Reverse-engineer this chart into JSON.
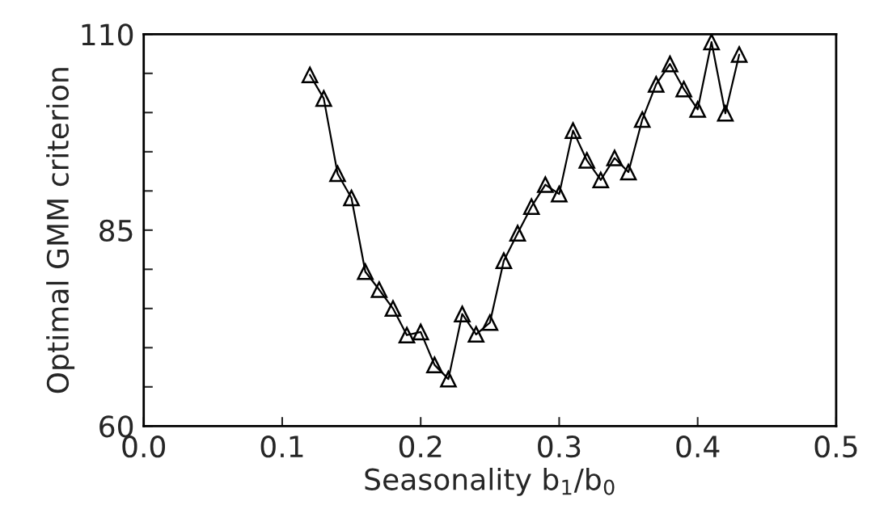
{
  "chart_data": {
    "type": "line",
    "xlabel": "Seasonality b$_{1}$/b$_{0}$",
    "ylabel": "Optimal GMM criterion",
    "x": [
      0.12,
      0.13,
      0.14,
      0.15,
      0.16,
      0.17,
      0.18,
      0.19,
      0.2,
      0.21,
      0.22,
      0.23,
      0.24,
      0.25,
      0.26,
      0.27,
      0.28,
      0.29,
      0.3,
      0.31,
      0.32,
      0.33,
      0.34,
      0.35,
      0.36,
      0.37,
      0.38,
      0.39,
      0.4,
      0.41,
      0.42,
      0.43
    ],
    "series": [
      {
        "color": "#000000",
        "values": [
          104.8,
          101.8,
          92.2,
          89.1,
          79.7,
          77.4,
          75.0,
          71.6,
          72.0,
          67.8,
          66.0,
          74.3,
          71.7,
          73.2,
          81.1,
          84.6,
          88.0,
          90.8,
          89.6,
          97.7,
          93.9,
          91.4,
          94.2,
          92.4,
          99.1,
          103.6,
          106.2,
          103.0,
          100.4,
          109.0,
          99.9,
          107.4
        ]
      }
    ],
    "xlim": [
      0.0,
      0.5
    ],
    "xticks": [
      "0.0",
      0.1,
      0.2,
      0.3,
      0.4,
      0.5
    ],
    "ylim": [
      60,
      110
    ],
    "yticks": [
      60,
      {
        "value": 65,
        "label": null
      },
      {
        "value": 70,
        "label": null
      },
      {
        "value": 75,
        "label": null
      },
      {
        "value": 80,
        "label": null
      },
      85,
      {
        "value": 90,
        "label": null
      },
      {
        "value": 95,
        "label": null
      },
      {
        "value": 100,
        "label": null
      },
      {
        "value": 105,
        "label": null
      },
      110
    ],
    "marker": "triangle",
    "line_style": "solid",
    "grid": false,
    "legend": false
  }
}
